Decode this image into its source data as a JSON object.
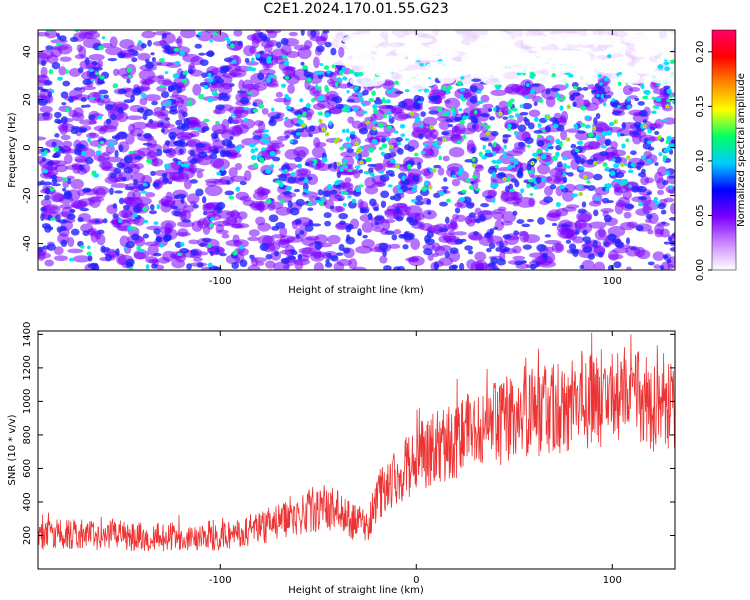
{
  "title": "C2E1.2024.170.01.55.G23",
  "chart_data": [
    {
      "type": "heatmap",
      "xlabel": "Height of straight line (km)",
      "ylabel": "Frequency (Hz)",
      "xlim": [
        -193,
        132
      ],
      "ylim": [
        -51,
        49
      ],
      "xticks": [
        -100,
        0,
        100
      ],
      "xticklabels": [
        "-100",
        "",
        "100"
      ],
      "yticks": [
        -40,
        -20,
        0,
        20,
        40
      ],
      "colorbar": {
        "label": "Normalized spectral amplitude",
        "range": [
          0.0,
          0.22
        ],
        "ticks": [
          0.0,
          0.05,
          0.1,
          0.15,
          0.2
        ],
        "ticklabels": [
          "0.00",
          "0.05",
          "0.10",
          "0.15",
          "0.20"
        ],
        "colors": [
          "#ffffff",
          "#cc88ff",
          "#7a00ff",
          "#0000ff",
          "#00ccff",
          "#00ff66",
          "#ffff00",
          "#ff8800",
          "#ff0000",
          "#ff0066"
        ]
      },
      "grid": false
    },
    {
      "type": "line",
      "xlabel": "Height of straight line (km)",
      "ylabel": "SNR (10 * v/v)",
      "xlim": [
        -193,
        132
      ],
      "ylim": [
        0,
        1420
      ],
      "xticks": [
        -100,
        0,
        100
      ],
      "xticklabels": [
        "-100",
        "0",
        "100"
      ],
      "yticks": [
        200,
        400,
        600,
        800,
        1000,
        1200,
        1400
      ],
      "series": [
        {
          "color": "#ee3333",
          "x": [
            -193,
            -180,
            -160,
            -140,
            -120,
            -100,
            -90,
            -80,
            -70,
            -60,
            -50,
            -40,
            -35,
            -30,
            -25,
            -20,
            -15,
            -10,
            0,
            10,
            20,
            30,
            40,
            50,
            60,
            70,
            80,
            90,
            100,
            110,
            120,
            132
          ],
          "y": [
            200,
            210,
            200,
            190,
            195,
            200,
            210,
            240,
            280,
            320,
            350,
            360,
            300,
            270,
            250,
            420,
            500,
            560,
            660,
            720,
            770,
            830,
            870,
            900,
            930,
            960,
            990,
            1010,
            1030,
            1040,
            990,
            960
          ]
        }
      ],
      "grid": false
    }
  ]
}
